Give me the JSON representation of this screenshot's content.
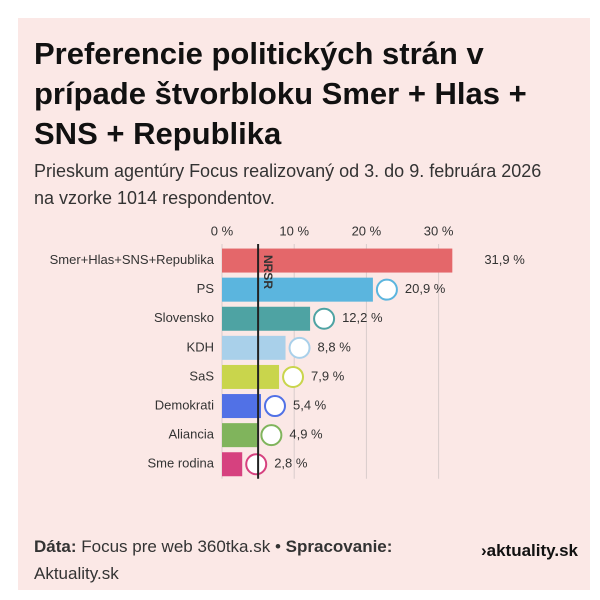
{
  "chart_data": {
    "type": "hbar",
    "title": "Preferencie politických strán v prípade štvorbloku Smer + Hlas + SNS + Republika",
    "subtitle": "Prieskum agentúry Focus realizovaný od 3. do 9. februára 2026 na vzorke 1014 respondentov.",
    "categories": [
      "Smer+Hlas+SNS+Republika",
      "PS",
      "Slovensko",
      "KDH",
      "SaS",
      "Demokrati",
      "Aliancia",
      "Sme rodina"
    ],
    "values": [
      31.9,
      20.9,
      12.2,
      8.8,
      7.9,
      5.4,
      4.9,
      2.8
    ],
    "value_labels": [
      "31,9 %",
      "20,9 %",
      "12,2 %",
      "8,8 %",
      "7,9 %",
      "5,4 %",
      "4,9 %",
      "2,8 %"
    ],
    "colors": [
      "#e4676a",
      "#5bb5de",
      "#4ea3a3",
      "#a9d0ea",
      "#c9d54c",
      "#5171e6",
      "#80b45c",
      "#d6417f"
    ],
    "xlim": [
      0,
      35
    ],
    "xticks": [
      {
        "value": 0,
        "label": "0 %"
      },
      {
        "value": 10,
        "label": "10 %"
      },
      {
        "value": 20,
        "label": "20 %"
      },
      {
        "value": 30,
        "label": "30 %"
      }
    ],
    "grid": true,
    "threshold": {
      "value": 5,
      "label": "NRSR"
    },
    "footer": {
      "source_label": "Dáta:",
      "source": "Focus pre web 360tka.sk •",
      "processing_label": "Spracovanie:",
      "processing": "Aktuality.sk"
    },
    "brand": "›aktuality.sk"
  }
}
